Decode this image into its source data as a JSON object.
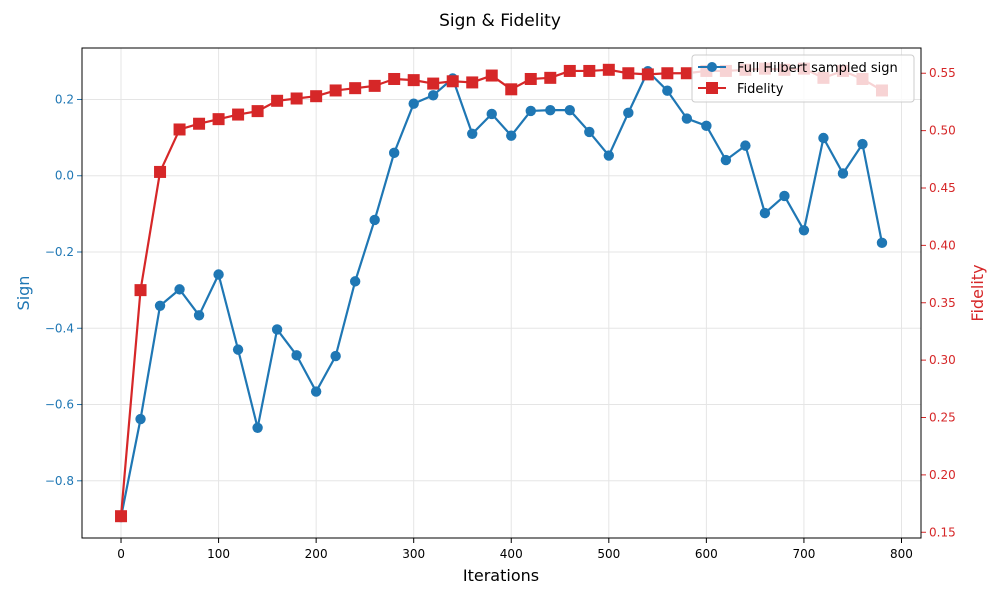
{
  "chart_data": {
    "type": "line",
    "title": "Sign & Fidelity",
    "xlabel": "Iterations",
    "ylabel_left": "Sign",
    "ylabel_right": "Fidelity",
    "xlim": [
      -40,
      820
    ],
    "ylim_left": [
      -0.95,
      0.335
    ],
    "ylim_right": [
      0.145,
      0.572
    ],
    "x_ticks": [
      0,
      100,
      200,
      300,
      400,
      500,
      600,
      700,
      800
    ],
    "y_ticks_left": [
      -0.8,
      -0.6,
      -0.4,
      -0.2,
      0.0,
      0.2
    ],
    "y_ticks_left_labels": [
      "−0.8",
      "−0.6",
      "−0.4",
      "−0.2",
      "0.0",
      "0.2"
    ],
    "y_ticks_right": [
      0.15,
      0.2,
      0.25,
      0.3,
      0.35,
      0.4,
      0.45,
      0.5,
      0.55
    ],
    "y_ticks_right_labels": [
      "0.15",
      "0.20",
      "0.25",
      "0.30",
      "0.35",
      "0.40",
      "0.45",
      "0.50",
      "0.55"
    ],
    "grid": true,
    "legend_position": "top-right",
    "x": [
      0,
      20,
      40,
      60,
      80,
      100,
      120,
      140,
      160,
      180,
      200,
      220,
      240,
      260,
      280,
      300,
      320,
      340,
      360,
      380,
      400,
      420,
      440,
      460,
      480,
      500,
      520,
      540,
      560,
      580,
      600,
      620,
      640,
      660,
      680,
      700,
      720,
      740,
      760,
      780
    ],
    "series": [
      {
        "name": "Full Hilbert sampled sign",
        "axis": "left",
        "color": "#1f77b4",
        "marker": "circle",
        "values": [
          -0.895,
          -0.638,
          -0.341,
          -0.298,
          -0.366,
          -0.259,
          -0.456,
          -0.661,
          -0.403,
          -0.471,
          -0.566,
          -0.473,
          -0.277,
          -0.116,
          0.06,
          0.189,
          0.211,
          0.255,
          0.11,
          0.162,
          0.105,
          0.17,
          0.172,
          0.172,
          0.115,
          0.053,
          0.165,
          0.274,
          0.223,
          0.15,
          0.131,
          0.041,
          0.079,
          -0.098,
          -0.053,
          -0.143,
          0.099,
          0.006,
          0.083,
          -0.176
        ]
      },
      {
        "name": "Fidelity",
        "axis": "right",
        "color": "#d62728",
        "marker": "square",
        "values": [
          0.164,
          0.361,
          0.464,
          0.501,
          0.506,
          0.51,
          0.514,
          0.517,
          0.526,
          0.528,
          0.53,
          0.535,
          0.537,
          0.539,
          0.545,
          0.544,
          0.541,
          0.543,
          0.542,
          0.548,
          0.536,
          0.545,
          0.546,
          0.552,
          0.552,
          0.553,
          0.55,
          0.549,
          0.55,
          0.55,
          0.552,
          0.552,
          0.553,
          0.554,
          0.553,
          0.554,
          0.546,
          0.552,
          0.545,
          0.535
        ]
      }
    ]
  }
}
